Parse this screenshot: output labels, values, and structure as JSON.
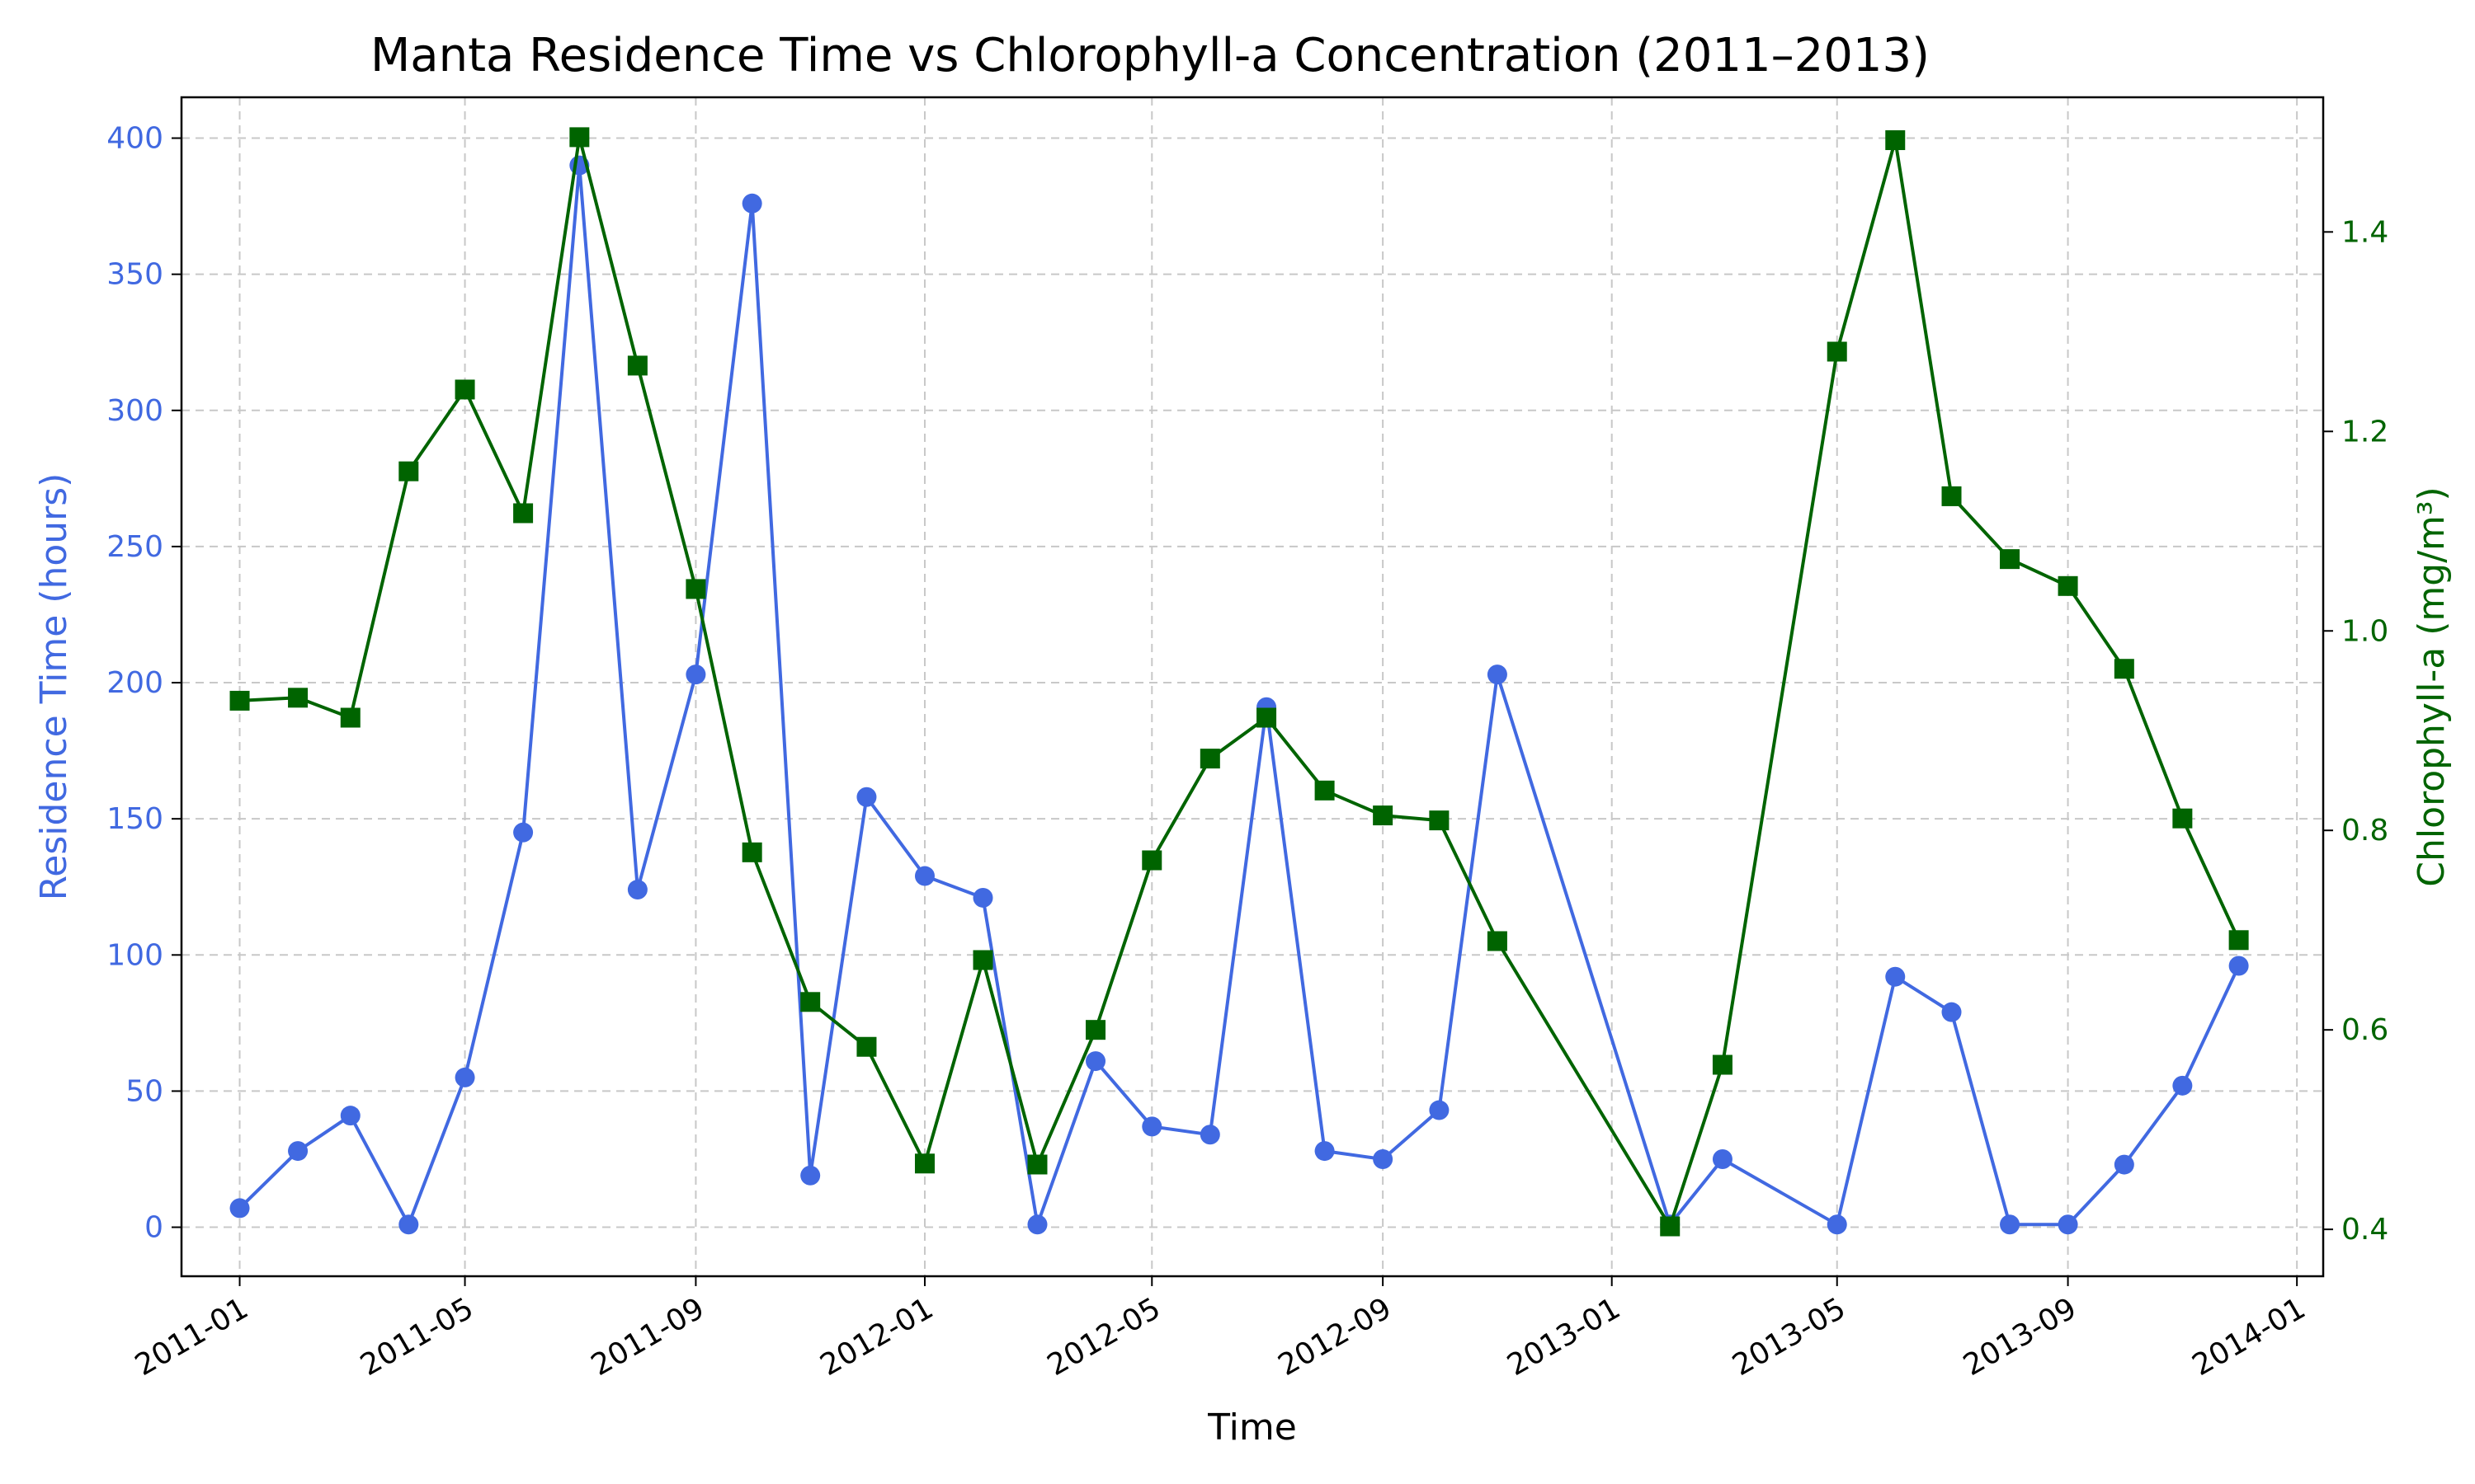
{
  "chart_data": {
    "type": "line",
    "title": "Manta Residence Time vs Chlorophyll-a Concentration (2011–2013)",
    "xlabel": "Time",
    "ylabel_left": "Residence Time (hours)",
    "ylabel_right": "Chlorophyll-a (mg/m³)",
    "xlim": [
      "2010-12-01",
      "2014-01-15"
    ],
    "ylim_left": [
      -18,
      415
    ],
    "ylim_right": [
      0.353,
      1.535
    ],
    "xticks": [
      {
        "date": "2011-01-01",
        "label": "2011-01"
      },
      {
        "date": "2011-05-01",
        "label": "2011-05"
      },
      {
        "date": "2011-09-01",
        "label": "2011-09"
      },
      {
        "date": "2012-01-01",
        "label": "2012-01"
      },
      {
        "date": "2012-05-01",
        "label": "2012-05"
      },
      {
        "date": "2012-09-01",
        "label": "2012-09"
      },
      {
        "date": "2013-01-01",
        "label": "2013-01"
      },
      {
        "date": "2013-05-01",
        "label": "2013-05"
      },
      {
        "date": "2013-09-01",
        "label": "2013-09"
      },
      {
        "date": "2014-01-01",
        "label": "2014-01"
      }
    ],
    "yticks_left": [
      0,
      50,
      100,
      150,
      200,
      250,
      300,
      350,
      400
    ],
    "yticks_right": [
      0.4,
      0.6,
      0.8,
      1.0,
      1.2,
      1.4
    ],
    "grid": true,
    "colors": {
      "left": "#4169e1",
      "right": "#006400"
    },
    "series": [
      {
        "name": "Residence Time (hours)",
        "axis": "left",
        "marker": "circle",
        "color": "#4169e1",
        "dates": [
          "2011-01-01",
          "2011-02-01",
          "2011-03-01",
          "2011-04-01",
          "2011-05-01",
          "2011-06-01",
          "2011-07-01",
          "2011-08-01",
          "2011-09-01",
          "2011-10-01",
          "2011-11-01",
          "2011-12-01",
          "2012-01-01",
          "2012-02-01",
          "2012-03-01",
          "2012-04-01",
          "2012-05-01",
          "2012-06-01",
          "2012-07-01",
          "2012-08-01",
          "2012-09-01",
          "2012-10-01",
          "2012-11-01",
          "2013-02-01",
          "2013-03-01",
          "2013-05-01",
          "2013-06-01",
          "2013-07-01",
          "2013-08-01",
          "2013-09-01",
          "2013-10-01",
          "2013-11-01",
          "2013-12-01"
        ],
        "values": [
          7,
          28,
          41,
          1,
          55,
          145,
          390,
          124,
          203,
          376,
          19,
          158,
          129,
          121,
          1,
          61,
          37,
          34,
          191,
          28,
          25,
          43,
          203,
          1,
          25,
          1,
          92,
          79,
          1,
          1,
          23,
          52,
          96
        ]
      },
      {
        "name": "Chlorophyll-a (mg/m³)",
        "axis": "right",
        "marker": "square",
        "color": "#006400",
        "dates": [
          "2011-01-01",
          "2011-02-01",
          "2011-03-01",
          "2011-04-01",
          "2011-05-01",
          "2011-06-01",
          "2011-07-01",
          "2011-08-01",
          "2011-09-01",
          "2011-10-01",
          "2011-11-01",
          "2011-12-01",
          "2012-01-01",
          "2012-02-01",
          "2012-03-01",
          "2012-04-01",
          "2012-05-01",
          "2012-06-01",
          "2012-07-01",
          "2012-08-01",
          "2012-09-01",
          "2012-10-01",
          "2012-11-01",
          "2013-02-01",
          "2013-03-01",
          "2013-05-01",
          "2013-06-01",
          "2013-07-01",
          "2013-08-01",
          "2013-09-01",
          "2013-10-01",
          "2013-11-01",
          "2013-12-01"
        ],
        "values": [
          0.93,
          0.933,
          0.913,
          1.16,
          1.242,
          1.118,
          1.495,
          1.266,
          1.042,
          0.778,
          0.628,
          0.583,
          0.466,
          0.67,
          0.465,
          0.6,
          0.77,
          0.872,
          0.913,
          0.84,
          0.815,
          0.81,
          0.689,
          0.403,
          0.565,
          1.28,
          1.492,
          1.135,
          1.072,
          1.045,
          0.962,
          0.812,
          0.69
        ]
      }
    ]
  }
}
